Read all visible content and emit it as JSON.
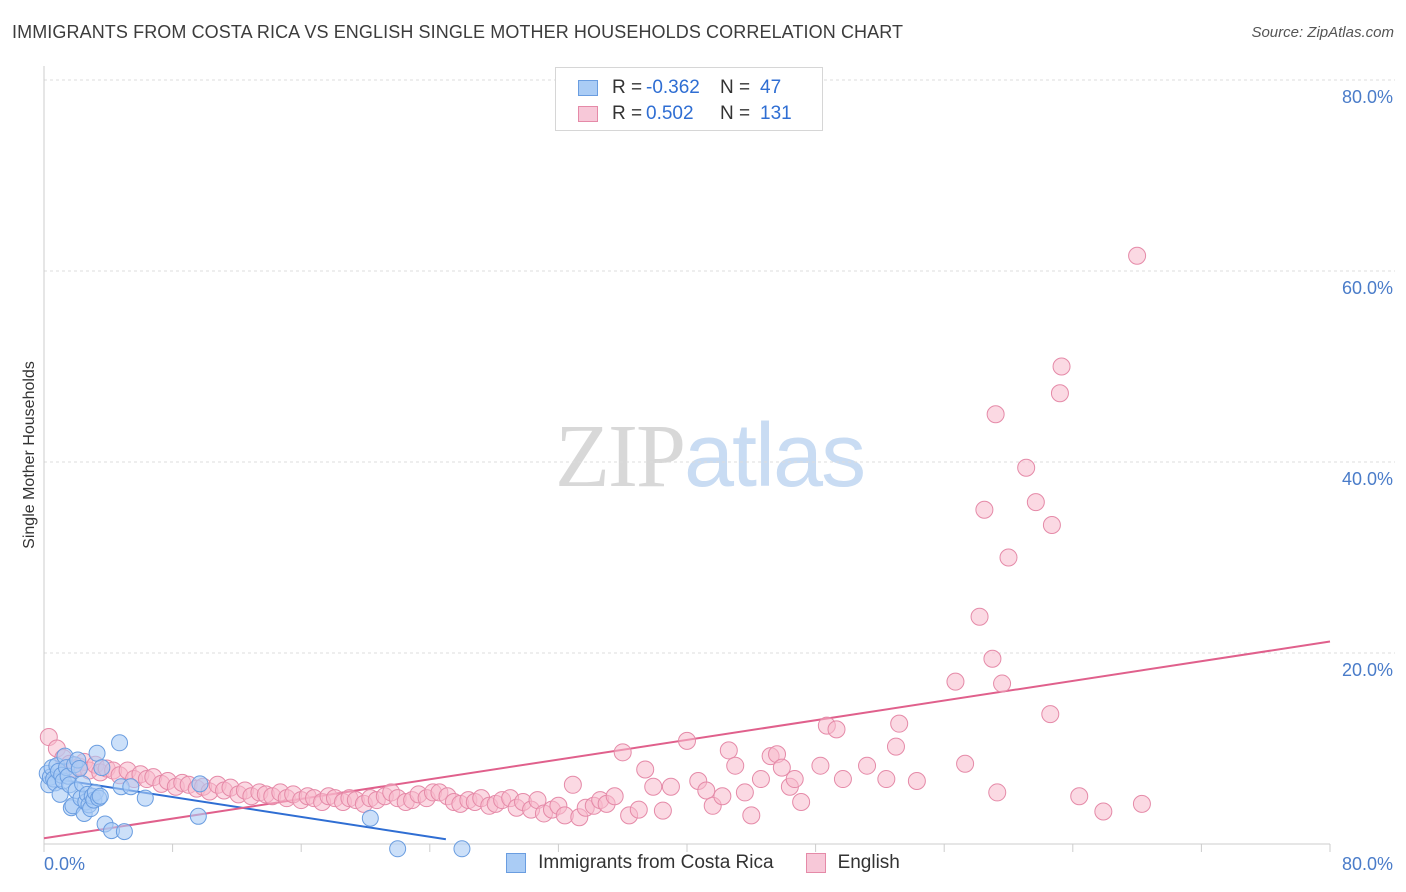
{
  "title": "IMMIGRANTS FROM COSTA RICA VS ENGLISH SINGLE MOTHER HOUSEHOLDS CORRELATION CHART",
  "source": "Source: ZipAtlas.com",
  "watermark": {
    "part1": "ZIP",
    "part2": "atlas"
  },
  "legend": {
    "r_label": "R =",
    "n_label": "N =",
    "rows": [
      {
        "r": "-0.362",
        "n": "47"
      },
      {
        "r": "0.502",
        "n": "131"
      }
    ]
  },
  "colors": {
    "blue_fill": "#aaccf5",
    "blue_stroke": "#6a9de0",
    "blue_line": "#2f6ed3",
    "pink_fill": "#f7b9cc",
    "pink_stroke": "#e58aa8",
    "pink_line": "#e0608c",
    "axis_text": "#4a7cc9",
    "grid": "#dddddd"
  },
  "chart_data": {
    "type": "scatter",
    "title": "IMMIGRANTS FROM COSTA RICA VS ENGLISH SINGLE MOTHER HOUSEHOLDS CORRELATION CHART",
    "xlabel": "",
    "ylabel": "Single Mother Households",
    "xlim": [
      0,
      80
    ],
    "ylim": [
      0,
      80
    ],
    "x_tick_labels": [
      "0.0%",
      "80.0%"
    ],
    "y_tick_labels": [
      "20.0%",
      "40.0%",
      "60.0%",
      "80.0%"
    ],
    "y_ticks": [
      20,
      40,
      60,
      80
    ],
    "grid": true,
    "series": [
      {
        "name": "Immigrants from Costa Rica",
        "color": "#aaccf5",
        "trend": {
          "x": [
            0,
            25
          ],
          "y": [
            7.0,
            0.5
          ]
        },
        "points": [
          [
            0.2,
            7.4
          ],
          [
            0.3,
            6.2
          ],
          [
            0.4,
            7.0
          ],
          [
            0.5,
            8.0
          ],
          [
            0.6,
            6.8
          ],
          [
            0.7,
            6.4
          ],
          [
            0.8,
            8.2
          ],
          [
            0.9,
            7.6
          ],
          [
            1.0,
            5.2
          ],
          [
            1.1,
            7.2
          ],
          [
            1.2,
            6.6
          ],
          [
            1.3,
            9.2
          ],
          [
            1.4,
            8.0
          ],
          [
            1.5,
            7.1
          ],
          [
            1.6,
            6.2
          ],
          [
            1.7,
            3.8
          ],
          [
            1.8,
            4.0
          ],
          [
            1.9,
            8.3
          ],
          [
            2.0,
            5.6
          ],
          [
            2.1,
            8.8
          ],
          [
            2.2,
            7.9
          ],
          [
            2.3,
            4.8
          ],
          [
            2.4,
            6.3
          ],
          [
            2.5,
            3.2
          ],
          [
            2.6,
            4.4
          ],
          [
            2.7,
            5.2
          ],
          [
            2.8,
            4.1
          ],
          [
            2.9,
            3.7
          ],
          [
            3.0,
            5.0
          ],
          [
            3.1,
            4.6
          ],
          [
            3.2,
            5.4
          ],
          [
            3.3,
            9.5
          ],
          [
            3.4,
            4.8
          ],
          [
            3.5,
            5.0
          ],
          [
            3.6,
            8.0
          ],
          [
            3.8,
            2.1
          ],
          [
            4.2,
            1.4
          ],
          [
            4.7,
            10.6
          ],
          [
            4.8,
            6.0
          ],
          [
            5.0,
            1.3
          ],
          [
            5.4,
            6.0
          ],
          [
            6.3,
            4.8
          ],
          [
            9.6,
            2.9
          ],
          [
            9.7,
            6.3
          ],
          [
            20.3,
            2.7
          ],
          [
            22.0,
            -0.5
          ],
          [
            26.0,
            -0.5
          ]
        ]
      },
      {
        "name": "English",
        "color": "#f7b9cc",
        "trend": {
          "x": [
            0,
            80
          ],
          "y": [
            0.6,
            21.2
          ]
        },
        "points": [
          [
            0.3,
            11.2
          ],
          [
            0.8,
            10.0
          ],
          [
            1.2,
            9.0
          ],
          [
            1.6,
            8.4
          ],
          [
            1.9,
            7.9
          ],
          [
            2.2,
            8.1
          ],
          [
            2.5,
            8.6
          ],
          [
            2.8,
            7.7
          ],
          [
            3.2,
            8.3
          ],
          [
            3.5,
            7.5
          ],
          [
            3.9,
            7.9
          ],
          [
            4.3,
            7.7
          ],
          [
            4.7,
            7.2
          ],
          [
            5.2,
            7.7
          ],
          [
            5.6,
            6.8
          ],
          [
            6.0,
            7.3
          ],
          [
            6.4,
            6.8
          ],
          [
            6.8,
            7.0
          ],
          [
            7.3,
            6.3
          ],
          [
            7.7,
            6.6
          ],
          [
            8.2,
            6.0
          ],
          [
            8.6,
            6.4
          ],
          [
            9.0,
            6.2
          ],
          [
            9.5,
            5.8
          ],
          [
            9.9,
            6.0
          ],
          [
            10.3,
            5.5
          ],
          [
            10.8,
            6.2
          ],
          [
            11.2,
            5.6
          ],
          [
            11.6,
            5.9
          ],
          [
            12.1,
            5.2
          ],
          [
            12.5,
            5.6
          ],
          [
            12.9,
            5.0
          ],
          [
            13.4,
            5.4
          ],
          [
            13.8,
            5.2
          ],
          [
            14.2,
            5.0
          ],
          [
            14.7,
            5.4
          ],
          [
            15.1,
            4.8
          ],
          [
            15.5,
            5.2
          ],
          [
            16.0,
            4.6
          ],
          [
            16.4,
            5.0
          ],
          [
            16.8,
            4.8
          ],
          [
            17.3,
            4.4
          ],
          [
            17.7,
            5.0
          ],
          [
            18.1,
            4.8
          ],
          [
            18.6,
            4.4
          ],
          [
            19.0,
            4.8
          ],
          [
            19.4,
            4.6
          ],
          [
            19.9,
            4.2
          ],
          [
            20.3,
            4.8
          ],
          [
            20.7,
            4.6
          ],
          [
            21.2,
            5.0
          ],
          [
            21.6,
            5.4
          ],
          [
            22.0,
            4.8
          ],
          [
            22.5,
            4.4
          ],
          [
            22.9,
            4.6
          ],
          [
            23.3,
            5.2
          ],
          [
            23.8,
            4.8
          ],
          [
            24.2,
            5.4
          ],
          [
            24.6,
            5.4
          ],
          [
            25.1,
            5.0
          ],
          [
            25.5,
            4.4
          ],
          [
            25.9,
            4.2
          ],
          [
            26.4,
            4.6
          ],
          [
            26.8,
            4.4
          ],
          [
            27.2,
            4.8
          ],
          [
            27.7,
            4.0
          ],
          [
            28.1,
            4.2
          ],
          [
            28.5,
            4.6
          ],
          [
            29.0,
            4.8
          ],
          [
            29.4,
            3.8
          ],
          [
            29.8,
            4.4
          ],
          [
            30.3,
            3.6
          ],
          [
            30.7,
            4.6
          ],
          [
            31.1,
            3.2
          ],
          [
            31.6,
            3.6
          ],
          [
            32.0,
            4.0
          ],
          [
            32.4,
            3.0
          ],
          [
            32.9,
            6.2
          ],
          [
            33.3,
            2.8
          ],
          [
            33.7,
            3.8
          ],
          [
            34.2,
            4.0
          ],
          [
            34.6,
            4.6
          ],
          [
            35.0,
            4.2
          ],
          [
            35.5,
            5.0
          ],
          [
            36.0,
            9.6
          ],
          [
            36.4,
            3.0
          ],
          [
            37.0,
            3.6
          ],
          [
            37.4,
            7.8
          ],
          [
            37.9,
            6.0
          ],
          [
            38.5,
            3.5
          ],
          [
            39.0,
            6.0
          ],
          [
            40.0,
            10.8
          ],
          [
            40.7,
            6.6
          ],
          [
            41.2,
            5.6
          ],
          [
            41.6,
            4.0
          ],
          [
            42.2,
            5.0
          ],
          [
            42.6,
            9.8
          ],
          [
            43.0,
            8.2
          ],
          [
            43.6,
            5.4
          ],
          [
            44.0,
            3.0
          ],
          [
            44.6,
            6.8
          ],
          [
            45.2,
            9.2
          ],
          [
            45.6,
            9.4
          ],
          [
            45.9,
            8.0
          ],
          [
            46.4,
            6.0
          ],
          [
            46.7,
            6.8
          ],
          [
            47.1,
            4.4
          ],
          [
            48.3,
            8.2
          ],
          [
            48.7,
            12.4
          ],
          [
            49.3,
            12.0
          ],
          [
            49.7,
            6.8
          ],
          [
            51.2,
            8.2
          ],
          [
            52.4,
            6.8
          ],
          [
            53.0,
            10.2
          ],
          [
            54.3,
            6.6
          ],
          [
            53.2,
            12.6
          ],
          [
            56.7,
            17.0
          ],
          [
            57.3,
            8.4
          ],
          [
            59.3,
            5.4
          ],
          [
            62.6,
            13.6
          ],
          [
            64.4,
            5.0
          ],
          [
            68.3,
            4.2
          ],
          [
            65.9,
            3.4
          ],
          [
            59.0,
            19.4
          ],
          [
            59.6,
            16.8
          ],
          [
            58.2,
            23.8
          ],
          [
            60.0,
            30.0
          ],
          [
            62.7,
            33.4
          ],
          [
            61.7,
            35.8
          ],
          [
            58.5,
            35.0
          ],
          [
            61.1,
            39.4
          ],
          [
            59.2,
            45.0
          ],
          [
            63.2,
            47.2
          ],
          [
            63.3,
            50.0
          ],
          [
            68.0,
            61.6
          ]
        ]
      }
    ]
  }
}
